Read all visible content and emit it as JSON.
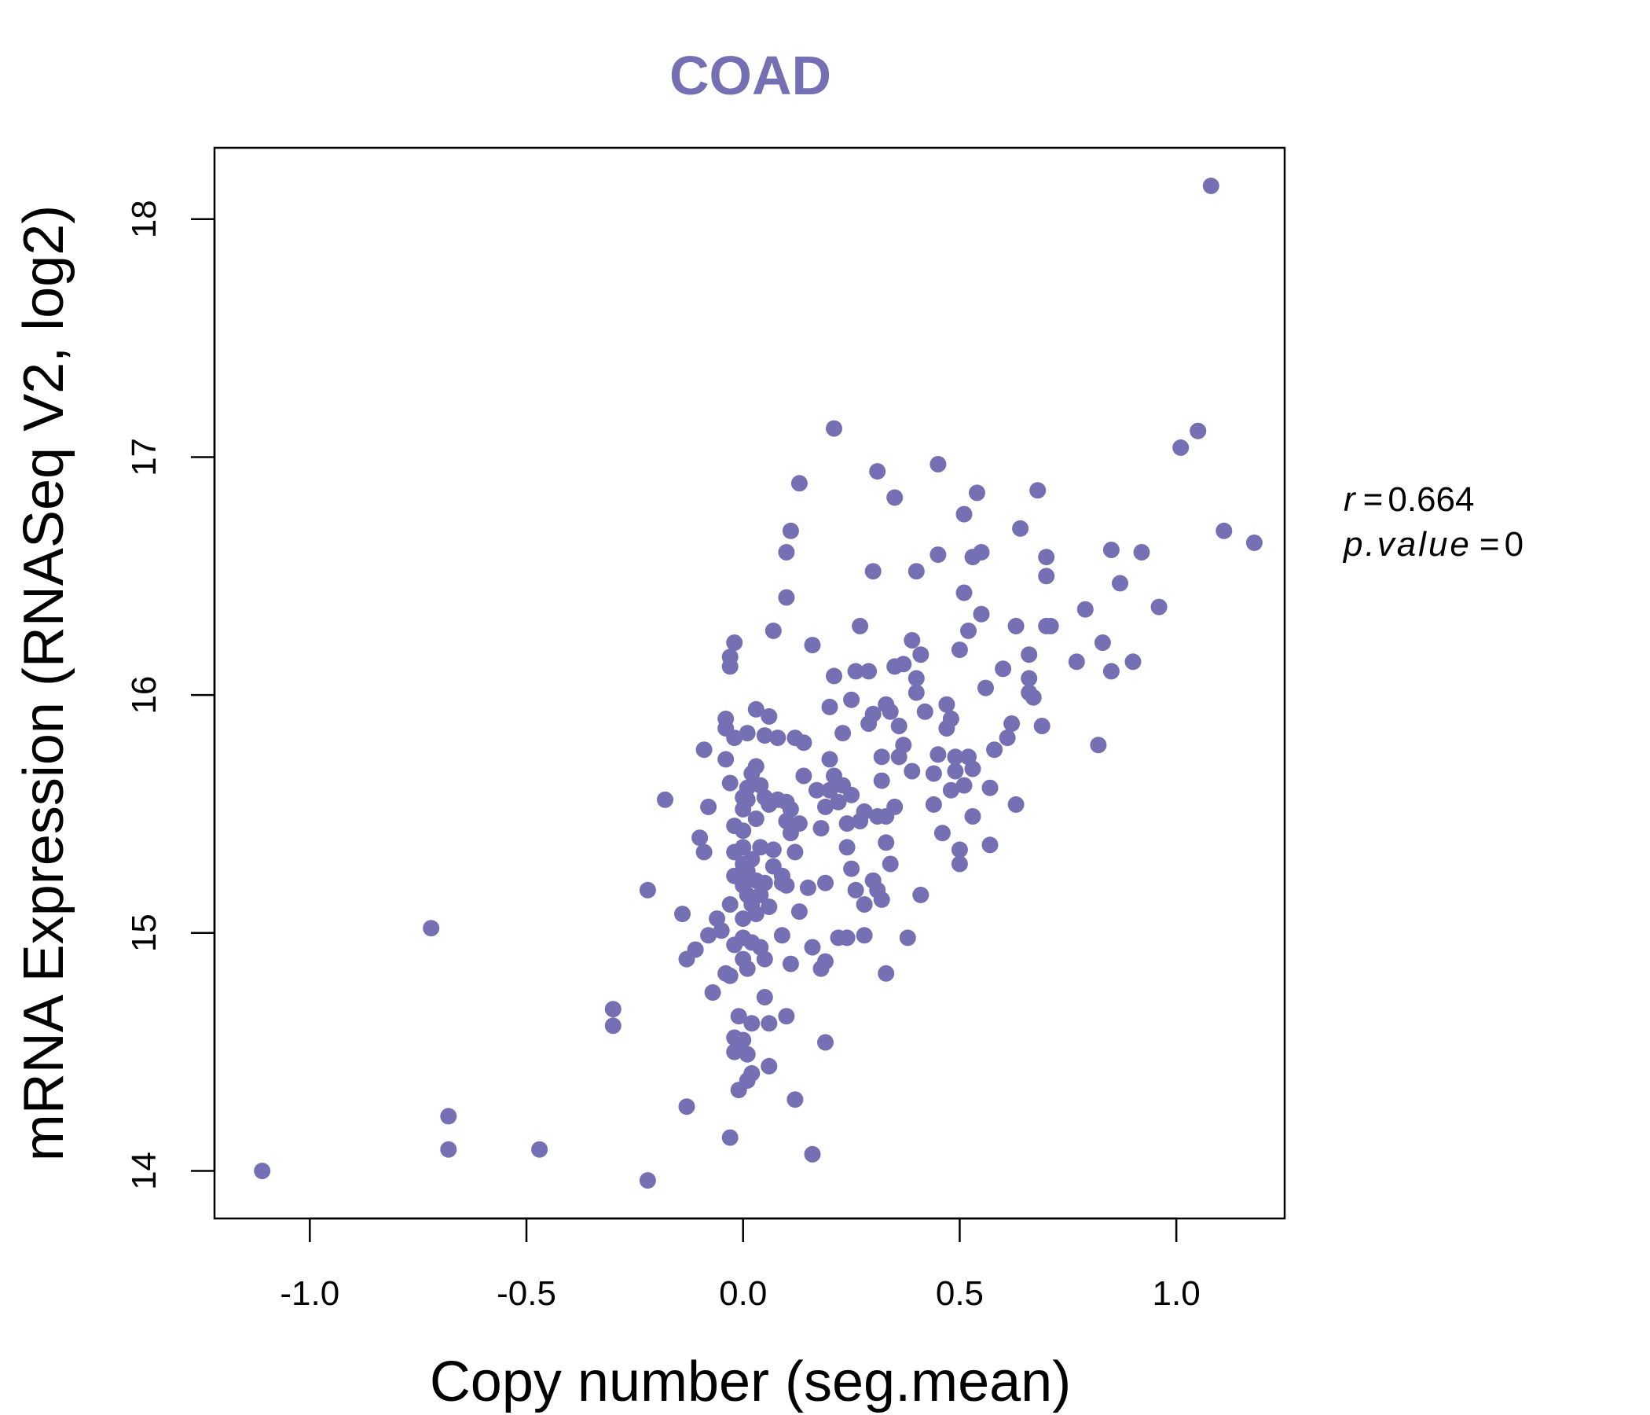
{
  "colors": {
    "point": "#7570B3",
    "title": "#7570B3",
    "axis": "#000000"
  },
  "chart_data": {
    "type": "scatter",
    "title": "COAD",
    "xlabel": "Copy number (seg.mean)",
    "ylabel": "mRNA Expression (RNASeq V2, log2)",
    "xlim": [
      -1.22,
      1.25
    ],
    "ylim": [
      13.8,
      18.3
    ],
    "xticks": [
      -1.0,
      -0.5,
      0.0,
      0.5,
      1.0
    ],
    "xtick_labels": [
      "-1.0",
      "-0.5",
      "0.0",
      "0.5",
      "1.0"
    ],
    "yticks": [
      14,
      15,
      16,
      17,
      18
    ],
    "ytick_labels": [
      "14",
      "15",
      "16",
      "17",
      "18"
    ],
    "grid": false,
    "annotations": {
      "r_label": "r",
      "r_value": "0.664",
      "p_label": "p.value",
      "p_value": "0"
    },
    "points": [
      [
        -1.11,
        14.0
      ],
      [
        -0.72,
        15.02
      ],
      [
        -0.68,
        14.23
      ],
      [
        -0.68,
        14.09
      ],
      [
        -0.47,
        14.09
      ],
      [
        -0.3,
        14.61
      ],
      [
        -0.3,
        14.68
      ],
      [
        -0.22,
        13.96
      ],
      [
        -0.22,
        15.18
      ],
      [
        -0.18,
        15.56
      ],
      [
        -0.14,
        15.08
      ],
      [
        -0.13,
        14.27
      ],
      [
        -0.13,
        14.89
      ],
      [
        -0.11,
        14.93
      ],
      [
        -0.1,
        15.4
      ],
      [
        -0.09,
        15.34
      ],
      [
        -0.09,
        15.77
      ],
      [
        -0.08,
        15.53
      ],
      [
        -0.08,
        14.99
      ],
      [
        -0.07,
        14.75
      ],
      [
        -0.06,
        15.06
      ],
      [
        -0.05,
        15.01
      ],
      [
        -0.04,
        15.9
      ],
      [
        -0.04,
        15.73
      ],
      [
        -0.04,
        15.86
      ],
      [
        -0.04,
        14.83
      ],
      [
        -0.03,
        15.63
      ],
      [
        -0.03,
        15.12
      ],
      [
        -0.03,
        14.82
      ],
      [
        -0.03,
        14.14
      ],
      [
        -0.03,
        16.12
      ],
      [
        -0.03,
        16.16
      ],
      [
        -0.02,
        16.22
      ],
      [
        -0.02,
        15.82
      ],
      [
        -0.02,
        15.45
      ],
      [
        -0.02,
        15.34
      ],
      [
        -0.02,
        15.24
      ],
      [
        -0.02,
        14.95
      ],
      [
        -0.02,
        14.5
      ],
      [
        -0.02,
        14.56
      ],
      [
        -0.01,
        14.34
      ],
      [
        -0.01,
        14.65
      ],
      [
        0.0,
        15.57
      ],
      [
        0.0,
        15.52
      ],
      [
        0.0,
        15.43
      ],
      [
        0.0,
        15.36
      ],
      [
        0.0,
        15.29
      ],
      [
        0.0,
        15.2
      ],
      [
        0.0,
        15.06
      ],
      [
        0.0,
        14.98
      ],
      [
        0.0,
        14.89
      ],
      [
        0.0,
        14.55
      ],
      [
        0.01,
        15.84
      ],
      [
        0.01,
        15.61
      ],
      [
        0.01,
        15.56
      ],
      [
        0.01,
        15.26
      ],
      [
        0.01,
        15.16
      ],
      [
        0.01,
        14.49
      ],
      [
        0.01,
        14.38
      ],
      [
        0.01,
        14.85
      ],
      [
        0.02,
        15.67
      ],
      [
        0.02,
        15.31
      ],
      [
        0.02,
        15.12
      ],
      [
        0.02,
        14.96
      ],
      [
        0.02,
        14.62
      ],
      [
        0.02,
        14.41
      ],
      [
        0.03,
        15.94
      ],
      [
        0.03,
        15.7
      ],
      [
        0.03,
        15.48
      ],
      [
        0.03,
        15.22
      ],
      [
        0.03,
        15.08
      ],
      [
        0.04,
        15.62
      ],
      [
        0.04,
        15.36
      ],
      [
        0.04,
        15.16
      ],
      [
        0.04,
        14.94
      ],
      [
        0.05,
        15.83
      ],
      [
        0.05,
        15.57
      ],
      [
        0.05,
        15.21
      ],
      [
        0.05,
        14.89
      ],
      [
        0.05,
        14.73
      ],
      [
        0.06,
        15.91
      ],
      [
        0.06,
        15.54
      ],
      [
        0.06,
        15.11
      ],
      [
        0.06,
        14.44
      ],
      [
        0.06,
        14.62
      ],
      [
        0.07,
        16.27
      ],
      [
        0.07,
        15.35
      ],
      [
        0.07,
        15.28
      ],
      [
        0.08,
        15.82
      ],
      [
        0.08,
        15.56
      ],
      [
        0.09,
        15.24
      ],
      [
        0.09,
        15.21
      ],
      [
        0.09,
        14.99
      ],
      [
        0.1,
        16.6
      ],
      [
        0.1,
        16.41
      ],
      [
        0.1,
        15.55
      ],
      [
        0.1,
        15.47
      ],
      [
        0.1,
        15.2
      ],
      [
        0.1,
        14.65
      ],
      [
        0.11,
        16.69
      ],
      [
        0.11,
        15.52
      ],
      [
        0.11,
        15.42
      ],
      [
        0.11,
        14.87
      ],
      [
        0.12,
        15.82
      ],
      [
        0.12,
        15.34
      ],
      [
        0.12,
        14.3
      ],
      [
        0.13,
        16.89
      ],
      [
        0.13,
        15.46
      ],
      [
        0.13,
        15.09
      ],
      [
        0.14,
        15.8
      ],
      [
        0.14,
        15.66
      ],
      [
        0.15,
        15.19
      ],
      [
        0.16,
        16.21
      ],
      [
        0.16,
        14.94
      ],
      [
        0.16,
        14.07
      ],
      [
        0.17,
        15.6
      ],
      [
        0.18,
        15.44
      ],
      [
        0.18,
        14.85
      ],
      [
        0.19,
        15.53
      ],
      [
        0.19,
        15.21
      ],
      [
        0.19,
        14.54
      ],
      [
        0.19,
        14.88
      ],
      [
        0.2,
        15.6
      ],
      [
        0.2,
        15.95
      ],
      [
        0.2,
        15.73
      ],
      [
        0.21,
        17.12
      ],
      [
        0.21,
        16.08
      ],
      [
        0.21,
        15.66
      ],
      [
        0.22,
        15.55
      ],
      [
        0.22,
        14.98
      ],
      [
        0.23,
        15.84
      ],
      [
        0.23,
        15.62
      ],
      [
        0.24,
        15.46
      ],
      [
        0.24,
        15.36
      ],
      [
        0.24,
        14.98
      ],
      [
        0.25,
        15.98
      ],
      [
        0.25,
        15.27
      ],
      [
        0.25,
        15.58
      ],
      [
        0.26,
        16.1
      ],
      [
        0.26,
        15.18
      ],
      [
        0.27,
        16.29
      ],
      [
        0.27,
        15.47
      ],
      [
        0.28,
        15.51
      ],
      [
        0.28,
        15.12
      ],
      [
        0.28,
        14.99
      ],
      [
        0.29,
        16.1
      ],
      [
        0.29,
        15.88
      ],
      [
        0.3,
        16.52
      ],
      [
        0.3,
        15.92
      ],
      [
        0.3,
        15.22
      ],
      [
        0.31,
        16.94
      ],
      [
        0.31,
        15.49
      ],
      [
        0.31,
        15.18
      ],
      [
        0.32,
        15.74
      ],
      [
        0.32,
        15.64
      ],
      [
        0.32,
        15.14
      ],
      [
        0.33,
        15.96
      ],
      [
        0.33,
        15.49
      ],
      [
        0.33,
        15.38
      ],
      [
        0.33,
        14.83
      ],
      [
        0.34,
        15.93
      ],
      [
        0.34,
        15.29
      ],
      [
        0.35,
        16.83
      ],
      [
        0.35,
        16.12
      ],
      [
        0.35,
        15.53
      ],
      [
        0.36,
        15.87
      ],
      [
        0.36,
        15.74
      ],
      [
        0.37,
        16.13
      ],
      [
        0.37,
        15.79
      ],
      [
        0.38,
        14.98
      ],
      [
        0.39,
        16.23
      ],
      [
        0.39,
        15.68
      ],
      [
        0.4,
        16.52
      ],
      [
        0.4,
        16.07
      ],
      [
        0.4,
        16.01
      ],
      [
        0.41,
        16.17
      ],
      [
        0.41,
        15.16
      ],
      [
        0.42,
        15.93
      ],
      [
        0.44,
        15.54
      ],
      [
        0.44,
        15.67
      ],
      [
        0.45,
        16.97
      ],
      [
        0.45,
        16.59
      ],
      [
        0.45,
        15.75
      ],
      [
        0.46,
        15.42
      ],
      [
        0.47,
        15.96
      ],
      [
        0.47,
        15.86
      ],
      [
        0.48,
        15.6
      ],
      [
        0.48,
        15.9
      ],
      [
        0.49,
        15.74
      ],
      [
        0.49,
        15.68
      ],
      [
        0.5,
        16.19
      ],
      [
        0.5,
        15.35
      ],
      [
        0.5,
        15.29
      ],
      [
        0.51,
        16.76
      ],
      [
        0.51,
        16.43
      ],
      [
        0.51,
        15.62
      ],
      [
        0.52,
        16.27
      ],
      [
        0.52,
        15.74
      ],
      [
        0.53,
        16.58
      ],
      [
        0.53,
        15.69
      ],
      [
        0.53,
        15.49
      ],
      [
        0.54,
        16.85
      ],
      [
        0.55,
        16.6
      ],
      [
        0.55,
        16.34
      ],
      [
        0.56,
        16.03
      ],
      [
        0.57,
        15.61
      ],
      [
        0.57,
        15.37
      ],
      [
        0.58,
        15.77
      ],
      [
        0.6,
        16.11
      ],
      [
        0.61,
        15.82
      ],
      [
        0.62,
        15.88
      ],
      [
        0.63,
        16.29
      ],
      [
        0.63,
        15.54
      ],
      [
        0.64,
        16.7
      ],
      [
        0.66,
        16.17
      ],
      [
        0.66,
        16.07
      ],
      [
        0.66,
        16.01
      ],
      [
        0.67,
        15.99
      ],
      [
        0.68,
        16.86
      ],
      [
        0.69,
        15.87
      ],
      [
        0.7,
        16.58
      ],
      [
        0.7,
        16.5
      ],
      [
        0.7,
        16.29
      ],
      [
        0.71,
        16.29
      ],
      [
        0.77,
        16.14
      ],
      [
        0.79,
        16.36
      ],
      [
        0.82,
        15.79
      ],
      [
        0.83,
        16.22
      ],
      [
        0.85,
        16.61
      ],
      [
        0.85,
        16.1
      ],
      [
        0.87,
        16.47
      ],
      [
        0.9,
        16.14
      ],
      [
        0.92,
        16.6
      ],
      [
        0.96,
        16.37
      ],
      [
        1.01,
        17.04
      ],
      [
        1.05,
        17.11
      ],
      [
        1.08,
        18.14
      ],
      [
        1.11,
        16.69
      ],
      [
        1.18,
        16.64
      ]
    ]
  }
}
